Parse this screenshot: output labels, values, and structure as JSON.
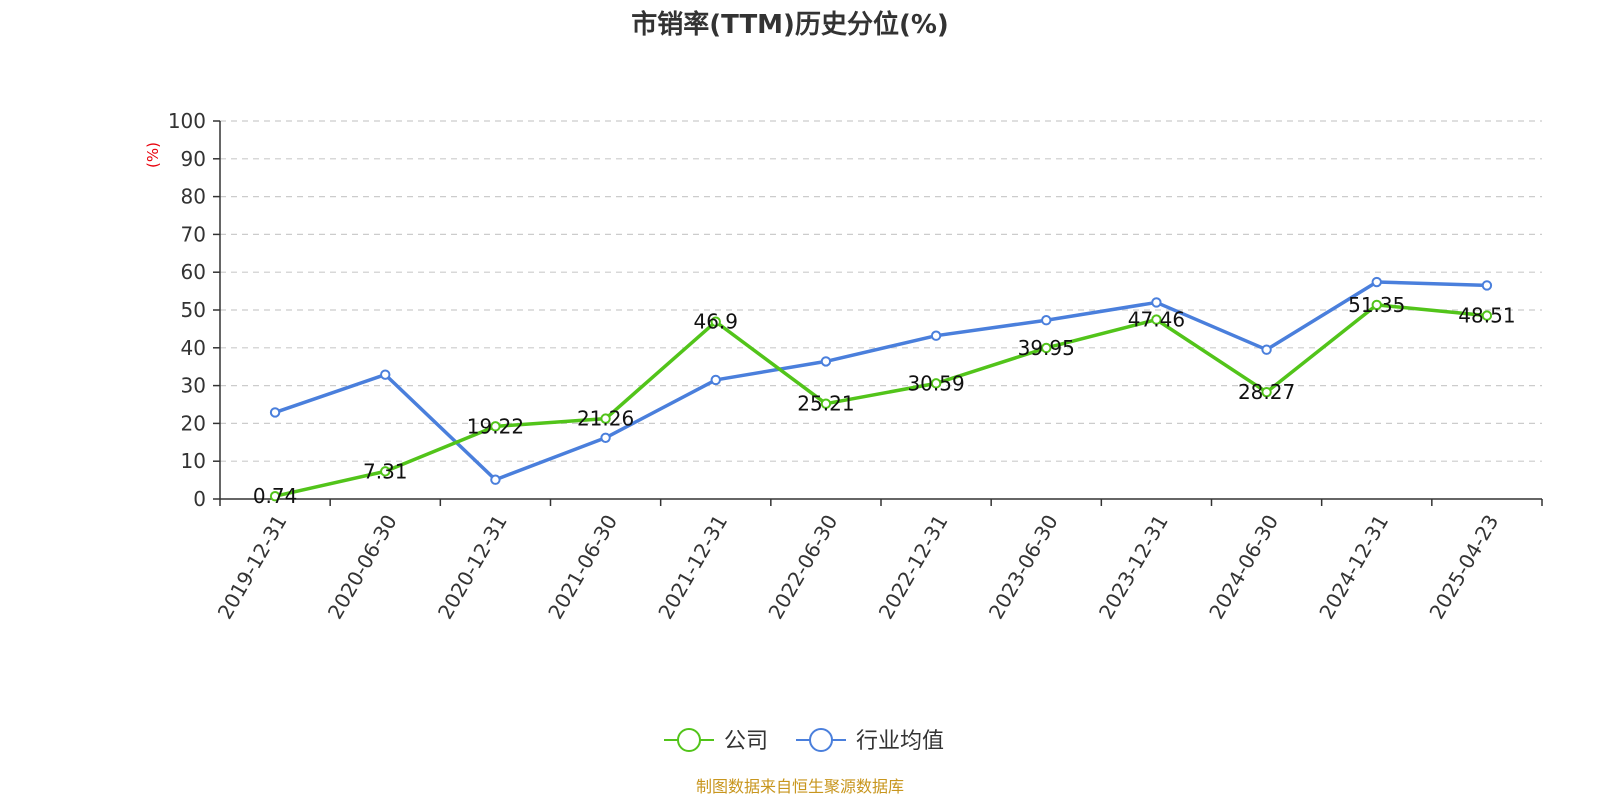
{
  "chart_data": {
    "type": "line",
    "title": "市销率(TTM)历史分位(%)",
    "ylabel": "(%)",
    "xlabel": "",
    "ylim": [
      0,
      100
    ],
    "yticks": [
      0,
      10,
      20,
      30,
      40,
      50,
      60,
      70,
      80,
      90,
      100
    ],
    "grid": true,
    "legend_position": "bottom-center",
    "categories": [
      "2019-12-31",
      "2020-06-30",
      "2020-12-31",
      "2021-06-30",
      "2021-12-31",
      "2022-06-30",
      "2022-12-31",
      "2023-06-30",
      "2023-12-31",
      "2024-06-30",
      "2024-12-31",
      "2025-04-23"
    ],
    "series": [
      {
        "name": "公司",
        "color": "#52c41a",
        "values": [
          0.74,
          7.31,
          19.22,
          21.26,
          46.9,
          25.21,
          30.59,
          39.95,
          47.46,
          28.27,
          51.35,
          48.51
        ],
        "labels": [
          "0.74",
          "7.31",
          "19.22",
          "21.26",
          "46.9",
          "25.21",
          "30.59",
          "39.95",
          "47.46",
          "28.27",
          "51.35",
          "48.51"
        ]
      },
      {
        "name": "行业均值",
        "color": "#4a7fdc",
        "values": [
          22.9,
          32.9,
          5.1,
          16.2,
          31.5,
          36.4,
          43.2,
          47.3,
          52.0,
          39.5,
          57.4,
          56.5
        ]
      }
    ],
    "unit_color": "#e8000b",
    "source": "制图数据来自恒生聚源数据库",
    "source_color": "#c8961e"
  }
}
